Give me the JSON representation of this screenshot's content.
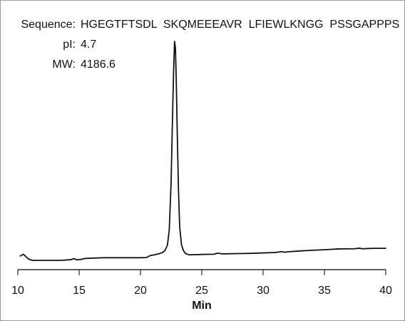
{
  "annotations": {
    "sequence_label": "Sequence:",
    "sequence_value": "HGEGTFTSDL  SKQMEEEAVR  LFIEWLKNGG  PSSGAPPPS",
    "pi_label": "pI:",
    "pi_value": "4.7",
    "mw_label": "MW:",
    "mw_value": "4186.6"
  },
  "chart_data": {
    "type": "line",
    "title": "",
    "xlabel": "Min",
    "ylabel": "",
    "xlim": [
      10,
      40
    ],
    "ylim": [
      0,
      100
    ],
    "xticks": [
      10,
      15,
      20,
      25,
      30,
      35,
      40
    ],
    "grid": false,
    "legend": "none",
    "line_color": "#111111",
    "series": [
      {
        "x": [
          10.2,
          10.45,
          10.7,
          10.9,
          11.2,
          11.5,
          12.5,
          13.5,
          14.3,
          14.6,
          14.8,
          15.2,
          15.5,
          16,
          17,
          18,
          19,
          20,
          20.5,
          20.8,
          21.0,
          21.2,
          21.5,
          21.8,
          22.0,
          22.2,
          22.35,
          22.5,
          22.6,
          22.7,
          22.78,
          22.85,
          22.92,
          23.0,
          23.1,
          23.2,
          23.35,
          23.5,
          23.7,
          24.0,
          24.3,
          24.6,
          25,
          26,
          26.3,
          26.6,
          27,
          28,
          29,
          30,
          31,
          31.5,
          31.8,
          32,
          33,
          34,
          34.8,
          35.5,
          36,
          37,
          37.5,
          37.8,
          38.1,
          38.5,
          39,
          40
        ],
        "y": [
          2.0,
          2.8,
          1.5,
          0.5,
          0.0,
          0.0,
          0.0,
          0.0,
          0.3,
          0.8,
          0.2,
          0.5,
          0.9,
          1.0,
          1.2,
          1.2,
          1.2,
          1.2,
          1.3,
          2.2,
          2.4,
          2.6,
          3.0,
          3.6,
          4.5,
          7.0,
          14.0,
          36.0,
          62.0,
          86.0,
          100.0,
          97.0,
          82.0,
          58.0,
          32.0,
          15.0,
          7.0,
          4.5,
          3.0,
          2.5,
          2.6,
          2.6,
          2.7,
          2.8,
          3.3,
          3.0,
          3.0,
          3.1,
          3.2,
          3.4,
          3.6,
          4.0,
          3.7,
          3.9,
          4.3,
          4.6,
          4.8,
          5.0,
          5.2,
          5.3,
          5.3,
          5.6,
          5.3,
          5.4,
          5.5,
          5.5
        ]
      }
    ]
  }
}
